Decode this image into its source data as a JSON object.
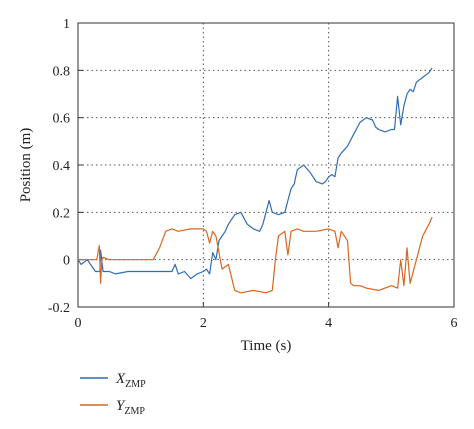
{
  "chart_data": {
    "type": "line",
    "xlabel": "Time (s)",
    "ylabel": "Position (m)",
    "xlim": [
      0,
      6
    ],
    "ylim": [
      -0.2,
      1
    ],
    "xticks": [
      "0",
      "2",
      "4",
      "6"
    ],
    "yticks": [
      "-0.2",
      "0",
      "0.2",
      "0.4",
      "0.6",
      "0.8",
      "1"
    ],
    "grid": true,
    "legend_position": "bottom-left",
    "series": [
      {
        "name": "X",
        "name_sub": "ZMP",
        "color": "#2f6db5",
        "x": [
          0.0,
          0.05,
          0.1,
          0.15,
          0.2,
          0.28,
          0.35,
          0.36,
          0.4,
          0.45,
          0.5,
          0.6,
          0.8,
          1.0,
          1.2,
          1.4,
          1.5,
          1.55,
          1.6,
          1.7,
          1.8,
          1.9,
          2.0,
          2.05,
          2.1,
          2.15,
          2.2,
          2.25,
          2.3,
          2.35,
          2.4,
          2.5,
          2.6,
          2.7,
          2.8,
          2.9,
          2.95,
          3.0,
          3.05,
          3.1,
          3.2,
          3.3,
          3.35,
          3.4,
          3.45,
          3.5,
          3.6,
          3.7,
          3.8,
          3.9,
          3.95,
          4.0,
          4.05,
          4.1,
          4.15,
          4.2,
          4.3,
          4.4,
          4.5,
          4.6,
          4.7,
          4.75,
          4.8,
          4.9,
          5.0,
          5.05,
          5.1,
          5.15,
          5.2,
          5.25,
          5.3,
          5.35,
          5.4,
          5.5,
          5.6,
          5.65
        ],
        "y": [
          0.0,
          -0.02,
          -0.01,
          0.0,
          -0.02,
          -0.05,
          -0.05,
          0.04,
          -0.05,
          -0.05,
          -0.05,
          -0.06,
          -0.05,
          -0.05,
          -0.05,
          -0.05,
          -0.05,
          -0.02,
          -0.06,
          -0.05,
          -0.08,
          -0.06,
          -0.05,
          -0.04,
          -0.06,
          0.03,
          0.0,
          0.08,
          0.1,
          0.12,
          0.15,
          0.19,
          0.2,
          0.15,
          0.13,
          0.12,
          0.15,
          0.2,
          0.25,
          0.2,
          0.19,
          0.2,
          0.25,
          0.3,
          0.32,
          0.38,
          0.4,
          0.37,
          0.33,
          0.32,
          0.33,
          0.35,
          0.36,
          0.35,
          0.43,
          0.45,
          0.48,
          0.53,
          0.58,
          0.6,
          0.59,
          0.56,
          0.55,
          0.54,
          0.55,
          0.55,
          0.69,
          0.57,
          0.65,
          0.7,
          0.72,
          0.71,
          0.75,
          0.77,
          0.79,
          0.81
        ]
      },
      {
        "name": "Y",
        "name_sub": "ZMP",
        "color": "#d9661f",
        "x": [
          0.0,
          0.1,
          0.2,
          0.3,
          0.34,
          0.36,
          0.38,
          0.4,
          0.5,
          0.8,
          1.0,
          1.2,
          1.3,
          1.4,
          1.5,
          1.6,
          1.8,
          2.0,
          2.05,
          2.1,
          2.15,
          2.2,
          2.3,
          2.4,
          2.5,
          2.6,
          2.8,
          3.0,
          3.1,
          3.15,
          3.2,
          3.3,
          3.35,
          3.4,
          3.5,
          3.6,
          3.8,
          4.0,
          4.1,
          4.15,
          4.2,
          4.3,
          4.35,
          4.4,
          4.5,
          4.6,
          4.8,
          5.0,
          5.1,
          5.15,
          5.2,
          5.25,
          5.3,
          5.4,
          5.5,
          5.6,
          5.65
        ],
        "y": [
          0.0,
          0.0,
          0.0,
          0.0,
          0.06,
          -0.1,
          0.0,
          0.01,
          0.0,
          0.0,
          0.0,
          0.0,
          0.05,
          0.12,
          0.13,
          0.12,
          0.13,
          0.13,
          0.12,
          0.07,
          0.12,
          0.1,
          -0.04,
          -0.02,
          -0.13,
          -0.14,
          -0.13,
          -0.14,
          -0.13,
          0.0,
          0.1,
          0.12,
          0.02,
          0.12,
          0.13,
          0.12,
          0.12,
          0.13,
          0.12,
          0.05,
          0.12,
          0.08,
          -0.1,
          -0.11,
          -0.11,
          -0.12,
          -0.13,
          -0.11,
          -0.12,
          0.0,
          -0.11,
          0.05,
          -0.1,
          0.0,
          0.1,
          0.15,
          0.18
        ]
      }
    ]
  }
}
